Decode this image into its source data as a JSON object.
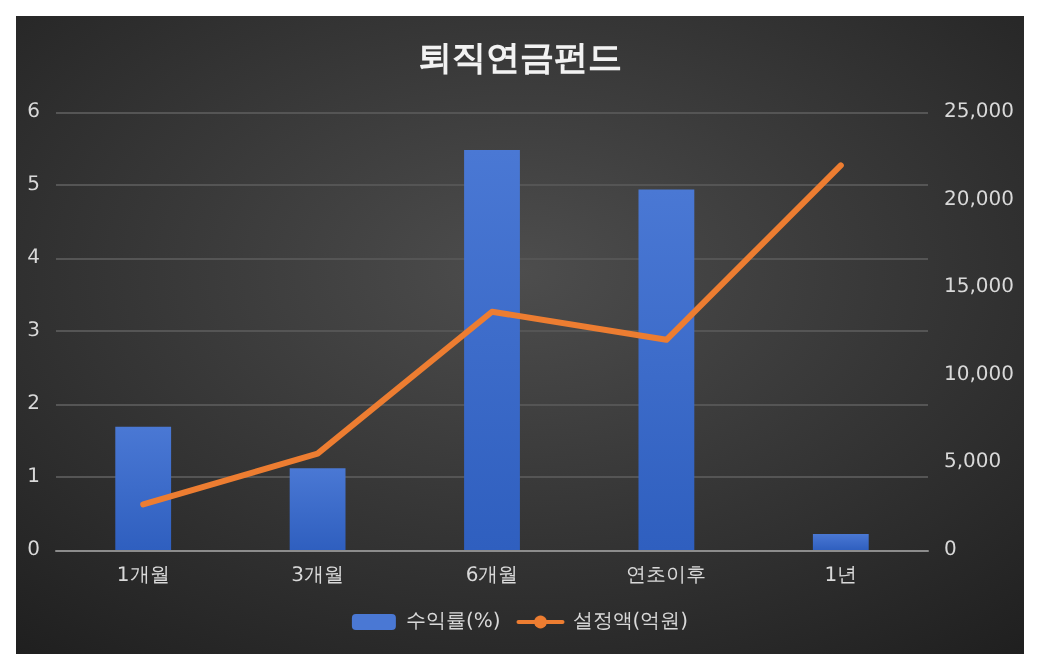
{
  "chart_data": {
    "type": "bar",
    "title": "퇴직연금펀드",
    "categories": [
      "1개월",
      "3개월",
      "6개월",
      "연초이후",
      "1년"
    ],
    "series": [
      {
        "name": "수익률(%)",
        "color": "#4a78d4",
        "values": [
          1.69,
          1.12,
          5.48,
          4.94,
          0.22
        ]
      },
      {
        "name": "설정액(억원)",
        "color": "#ed7d31",
        "type": "line",
        "axis": "y2",
        "values": [
          2600,
          5500,
          13600,
          12000,
          21950
        ]
      }
    ],
    "ylim": [
      0,
      6
    ],
    "yticks": [
      0,
      1,
      2,
      3,
      4,
      5,
      6
    ],
    "y2lim": [
      0,
      25000
    ],
    "y2ticks": [
      {
        "value": 0,
        "label": "0"
      },
      {
        "value": 5000,
        "label": "5,000"
      },
      {
        "value": 10000,
        "label": "10,000"
      },
      {
        "value": 15000,
        "label": "15,000"
      },
      {
        "value": 20000,
        "label": "20,000"
      },
      {
        "value": 25000,
        "label": "25,000"
      }
    ],
    "grid": "y",
    "legend": "bottom",
    "marker": "none",
    "line_style": "solid"
  }
}
